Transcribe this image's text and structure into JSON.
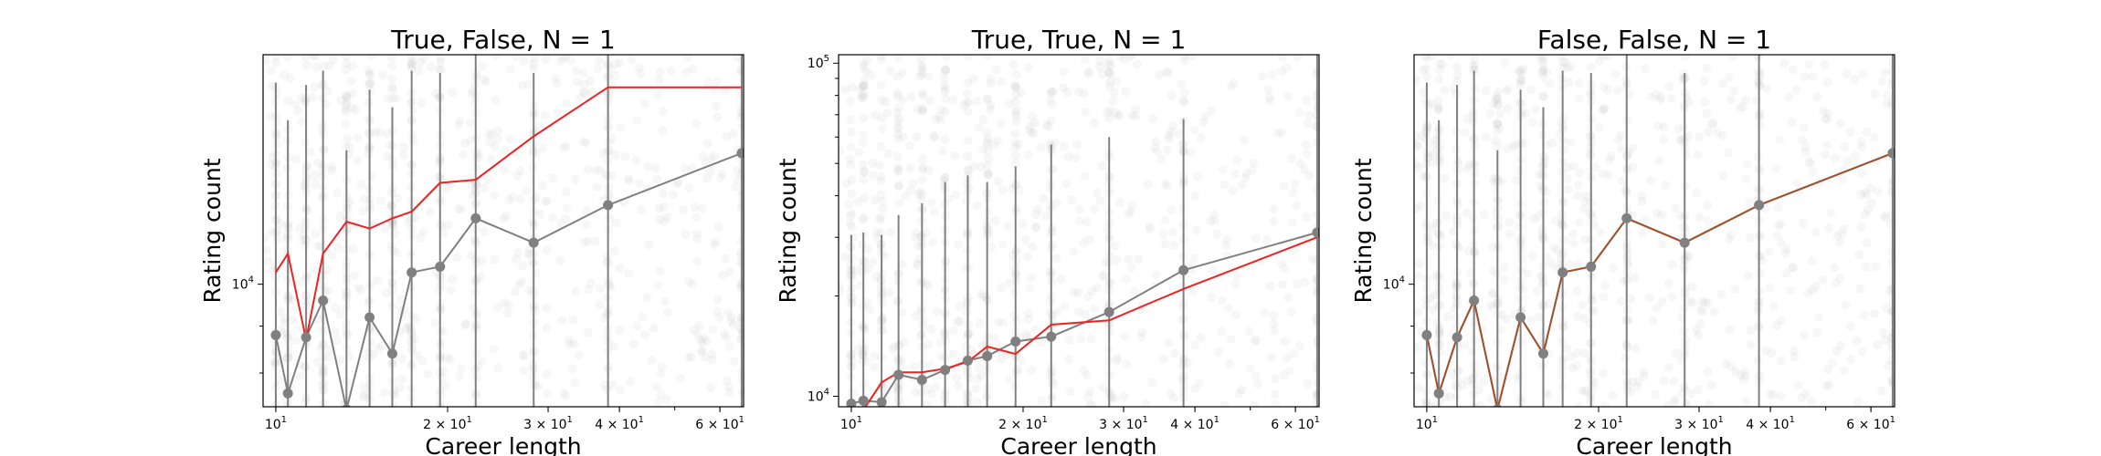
{
  "chart_data": [
    {
      "type": "line",
      "title": "True, False, N = 1",
      "xlabel": "Career length",
      "ylabel": "Rating count",
      "xscale": "log",
      "yscale": "log",
      "xlim": [
        9.5,
        66
      ],
      "ylim": [
        7350,
        17800
      ],
      "xticks": [
        {
          "base": "10",
          "exp": "1",
          "value": 10
        },
        {
          "base": "2 × 10",
          "exp": "1",
          "value": 20
        },
        {
          "base": "3 × 10",
          "exp": "1",
          "value": 30
        },
        {
          "base": "4 × 10",
          "exp": "1",
          "value": 40
        },
        {
          "base": "6 × 10",
          "exp": "1",
          "value": 60
        }
      ],
      "yticks": [
        {
          "base": "10",
          "exp": "4",
          "value": 10000
        }
      ],
      "x": [
        10,
        10.5,
        11.3,
        12.1,
        13.3,
        14.6,
        16,
        17.3,
        19.4,
        22.4,
        28.3,
        38.2,
        65.5
      ],
      "series": [
        {
          "color": "#808080",
          "markers": true,
          "values": [
            8800,
            7600,
            8750,
            9600,
            7300,
            9200,
            8400,
            10300,
            10450,
            11800,
            11100,
            12200,
            13900
          ],
          "yerr_high": [
            16600,
            15100,
            16500,
            17100,
            14000,
            16300,
            15600,
            17100,
            17000,
            18400,
            17000,
            18000,
            20000
          ]
        },
        {
          "color": "#ee2222",
          "markers": false,
          "values": [
            10300,
            10800,
            8700,
            10800,
            11700,
            11500,
            11800,
            12000,
            12900,
            13000,
            14500,
            16400,
            16400
          ]
        }
      ],
      "scatter_alpha": 0.12,
      "scatter_color": "#bdbdbd"
    },
    {
      "type": "line",
      "title": "True, True,  N = 1",
      "xlabel": "Career length",
      "ylabel": "Rating count",
      "xscale": "log",
      "yscale": "log",
      "xlim": [
        9.5,
        66
      ],
      "ylim": [
        9300,
        106000
      ],
      "xticks": [
        {
          "base": "10",
          "exp": "1",
          "value": 10
        },
        {
          "base": "2 × 10",
          "exp": "1",
          "value": 20
        },
        {
          "base": "3 × 10",
          "exp": "1",
          "value": 30
        },
        {
          "base": "4 × 10",
          "exp": "1",
          "value": 40
        },
        {
          "base": "6 × 10",
          "exp": "1",
          "value": 60
        }
      ],
      "yticks": [
        {
          "base": "10",
          "exp": "4",
          "value": 10000
        },
        {
          "base": "10",
          "exp": "5",
          "value": 100000
        }
      ],
      "x": [
        10,
        10.5,
        11.3,
        12.1,
        13.3,
        14.6,
        16,
        17.3,
        19.4,
        22.4,
        28.3,
        38.2,
        65.5
      ],
      "series": [
        {
          "color": "#808080",
          "markers": true,
          "values": [
            9500,
            9700,
            9600,
            11600,
            11200,
            12000,
            12800,
            13200,
            14600,
            15100,
            17900,
            23900,
            31000
          ],
          "yerr_high": [
            30500,
            31000,
            30500,
            35000,
            38000,
            44000,
            46000,
            44000,
            49000,
            57000,
            60000,
            68000,
            106000
          ]
        },
        {
          "color": "#ee2222",
          "markers": false,
          "values": [
            9300,
            9100,
            11000,
            11800,
            11800,
            12100,
            12700,
            14100,
            13400,
            16400,
            16900,
            21000,
            30000
          ]
        }
      ],
      "scatter_alpha": 0.12,
      "scatter_color": "#bdbdbd"
    },
    {
      "type": "line",
      "title": "False, False, N = 1",
      "xlabel": "Career length",
      "ylabel": "Rating count",
      "xscale": "log",
      "yscale": "log",
      "xlim": [
        9.5,
        66
      ],
      "ylim": [
        7350,
        17800
      ],
      "xticks": [
        {
          "base": "10",
          "exp": "1",
          "value": 10
        },
        {
          "base": "2 × 10",
          "exp": "1",
          "value": 20
        },
        {
          "base": "3 × 10",
          "exp": "1",
          "value": 30
        },
        {
          "base": "4 × 10",
          "exp": "1",
          "value": 40
        },
        {
          "base": "6 × 10",
          "exp": "1",
          "value": 60
        }
      ],
      "yticks": [
        {
          "base": "10",
          "exp": "4",
          "value": 10000
        }
      ],
      "x": [
        10,
        10.5,
        11.3,
        12.1,
        13.3,
        14.6,
        16,
        17.3,
        19.4,
        22.4,
        28.3,
        38.2,
        65.5
      ],
      "series": [
        {
          "color": "#808080",
          "markers": true,
          "values": [
            8800,
            7600,
            8750,
            9600,
            7300,
            9200,
            8400,
            10300,
            10450,
            11800,
            11100,
            12200,
            13900
          ],
          "yerr_high": [
            16600,
            15100,
            16500,
            17100,
            14000,
            16300,
            15600,
            17100,
            17000,
            18400,
            17000,
            18000,
            20000
          ]
        },
        {
          "color": "#a0522d",
          "markers": false,
          "values": [
            8800,
            7600,
            8750,
            9600,
            7300,
            9200,
            8400,
            10300,
            10450,
            11800,
            11100,
            12200,
            13900
          ]
        }
      ],
      "scatter_alpha": 0.12,
      "scatter_color": "#bdbdbd"
    }
  ]
}
